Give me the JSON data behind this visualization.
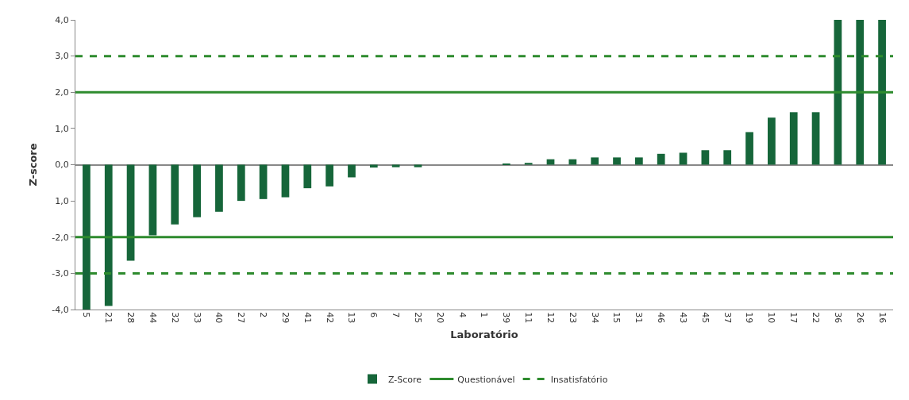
{
  "chart_data": {
    "type": "bar",
    "xlabel": "Laboratório",
    "ylabel": "Z-score",
    "categories": [
      "5",
      "21",
      "28",
      "44",
      "32",
      "33",
      "40",
      "27",
      "2",
      "29",
      "41",
      "42",
      "13",
      "6",
      "7",
      "25",
      "20",
      "4",
      "1",
      "39",
      "11",
      "12",
      "23",
      "34",
      "15",
      "31",
      "46",
      "43",
      "45",
      "37",
      "19",
      "10",
      "17",
      "22",
      "36",
      "26",
      "16"
    ],
    "series": [
      {
        "name": "Z-Score",
        "color": "#16663a",
        "values": [
          -4,
          -3.9,
          -2.65,
          -1.95,
          -1.65,
          -1.45,
          -1.3,
          -1.0,
          -0.95,
          -0.9,
          -0.65,
          -0.6,
          -0.35,
          -0.08,
          -0.07,
          -0.07,
          0,
          0,
          0,
          0.03,
          0.05,
          0.15,
          0.15,
          0.2,
          0.2,
          0.2,
          0.3,
          0.33,
          0.4,
          0.4,
          0.9,
          1.3,
          1.45,
          1.45,
          4,
          4,
          4
        ]
      }
    ],
    "ref_lines": [
      {
        "axis": "y",
        "value": 2,
        "label": "Questionável",
        "color": "#2e8b2e",
        "line_style": "solid"
      },
      {
        "axis": "y",
        "value": -2,
        "color": "#2e8b2e",
        "line_style": "solid"
      },
      {
        "axis": "y",
        "value": 3,
        "label": "Insatisfatório",
        "color": "#2e8b2e",
        "line_style": "dashed"
      },
      {
        "axis": "y",
        "value": -3,
        "color": "#2e8b2e",
        "line_style": "dashed"
      }
    ],
    "ylim": [
      -4,
      4
    ],
    "yticks": [
      {
        "value": -4,
        "label": "-4,0"
      },
      {
        "value": -3,
        "label": "-3,0"
      },
      {
        "value": -2,
        "label": "-2,0"
      },
      {
        "value": -1,
        "label": "1,0"
      },
      {
        "value": 0,
        "label": "0,0"
      },
      {
        "value": 1,
        "label": "1,0"
      },
      {
        "value": 2,
        "label": "2,0"
      },
      {
        "value": 3,
        "label": "3,0"
      },
      {
        "value": 4,
        "label": "4,0"
      }
    ],
    "legend": "bottom"
  }
}
